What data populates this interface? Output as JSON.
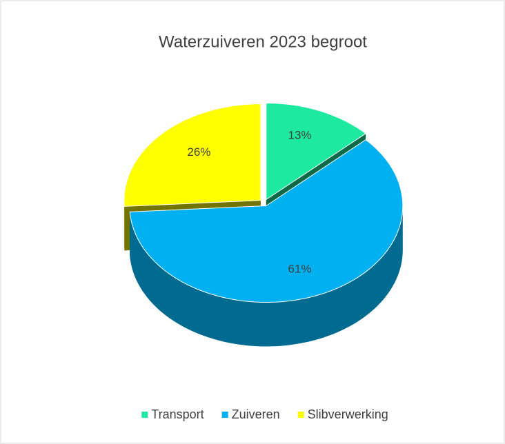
{
  "chart_data": {
    "type": "pie",
    "title": "Waterzuiveren 2023 begroot",
    "categories": [
      "Transport",
      "Zuiveren",
      "Slibverwerking"
    ],
    "values": [
      13,
      61,
      26
    ],
    "value_labels": [
      "13%",
      "61%",
      "26%"
    ],
    "colors": [
      "#1de9a0",
      "#00b0f0",
      "#ffff00"
    ],
    "legend": "bottom"
  }
}
